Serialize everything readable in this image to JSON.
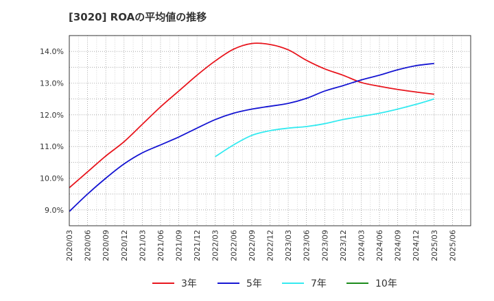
{
  "chart_data": {
    "type": "line",
    "title": "[3020]  ROAの平均値の推移",
    "xlabel": "",
    "ylabel": "",
    "categories": [
      "2020/03",
      "2020/06",
      "2020/09",
      "2020/12",
      "2021/03",
      "2021/06",
      "2021/09",
      "2021/12",
      "2022/03",
      "2022/06",
      "2022/09",
      "2022/12",
      "2023/03",
      "2023/06",
      "2023/09",
      "2023/12",
      "2024/03",
      "2024/06",
      "2024/09",
      "2024/12",
      "2025/03",
      "2025/06"
    ],
    "y_tick_labels": [
      "9.0%",
      "10.0%",
      "11.0%",
      "12.0%",
      "13.0%",
      "14.0%"
    ],
    "ylim": [
      8.5,
      14.5
    ],
    "grid": true,
    "legend_position": "bottom",
    "series": [
      {
        "name": "3年",
        "color": "#e8141c",
        "values": [
          9.7,
          10.2,
          10.7,
          11.15,
          11.7,
          12.25,
          12.75,
          13.25,
          13.7,
          14.07,
          14.25,
          14.22,
          14.05,
          13.72,
          13.45,
          13.25,
          13.02,
          12.9,
          12.8,
          12.72,
          12.65,
          null
        ]
      },
      {
        "name": "5年",
        "color": "#1414d2",
        "values": [
          8.95,
          9.5,
          10.0,
          10.45,
          10.8,
          11.05,
          11.3,
          11.58,
          11.85,
          12.05,
          12.18,
          12.27,
          12.36,
          12.52,
          12.75,
          12.92,
          13.1,
          13.25,
          13.42,
          13.55,
          13.62,
          null
        ]
      },
      {
        "name": "7年",
        "color": "#33eaf0",
        "values": [
          null,
          null,
          null,
          null,
          null,
          null,
          null,
          null,
          10.68,
          11.05,
          11.35,
          11.5,
          11.58,
          11.63,
          11.72,
          11.85,
          11.95,
          12.05,
          12.18,
          12.33,
          12.5,
          null
        ]
      },
      {
        "name": "10年",
        "color": "#1a8a1a",
        "values": [
          null,
          null,
          null,
          null,
          null,
          null,
          null,
          null,
          null,
          null,
          null,
          null,
          null,
          null,
          null,
          null,
          null,
          null,
          null,
          null,
          null,
          null
        ]
      }
    ]
  }
}
